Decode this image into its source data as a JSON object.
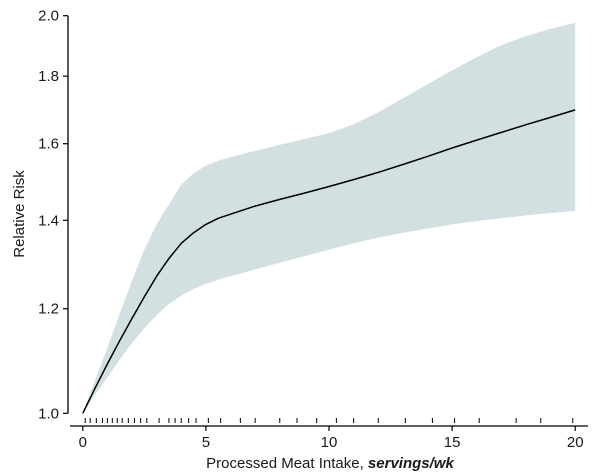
{
  "chart_data": {
    "type": "line",
    "title": "",
    "xlabel": "Processed Meat Intake, ",
    "xlabel_unit": "servings/wk",
    "ylabel": "Relative Risk",
    "y_scale": "log",
    "xlim": [
      -0.6,
      20.6
    ],
    "ylim": [
      0.985,
      2.02
    ],
    "x_ticks": [
      0,
      5,
      10,
      15,
      20
    ],
    "x_tick_labels": [
      "0",
      "5",
      "10",
      "15",
      "20"
    ],
    "y_ticks": [
      1.0,
      1.2,
      1.4,
      1.6,
      1.8,
      2.0
    ],
    "y_tick_labels": [
      "1.0",
      "1.2",
      "1.4",
      "1.6",
      "1.8",
      "2.0"
    ],
    "grid": false,
    "legend": "none",
    "colors": {
      "band": "#d3e0e2",
      "line": "#000000"
    },
    "series": [
      {
        "kind": "estimate",
        "x": [
          0,
          0.5,
          1,
          1.5,
          2,
          2.5,
          3,
          3.5,
          4,
          4.5,
          5,
          5.5,
          6,
          7,
          8,
          9,
          10,
          11,
          12,
          13,
          14,
          15,
          16,
          17,
          18,
          19,
          20
        ],
        "y": [
          1.0,
          1.045,
          1.09,
          1.135,
          1.18,
          1.225,
          1.27,
          1.31,
          1.345,
          1.37,
          1.39,
          1.405,
          1.415,
          1.435,
          1.452,
          1.468,
          1.485,
          1.503,
          1.522,
          1.543,
          1.565,
          1.588,
          1.61,
          1.632,
          1.654,
          1.675,
          1.697
        ]
      },
      {
        "kind": "ci_upper",
        "x": [
          0,
          0.5,
          1,
          1.5,
          2,
          2.5,
          3,
          3.5,
          4,
          4.5,
          5,
          5.5,
          6,
          7,
          8,
          9,
          10,
          11,
          12,
          13,
          14,
          15,
          16,
          17,
          18,
          19,
          20
        ],
        "y": [
          1.0,
          1.06,
          1.12,
          1.19,
          1.26,
          1.33,
          1.39,
          1.44,
          1.49,
          1.52,
          1.54,
          1.553,
          1.563,
          1.58,
          1.597,
          1.613,
          1.63,
          1.655,
          1.69,
          1.732,
          1.775,
          1.818,
          1.86,
          1.9,
          1.93,
          1.955,
          1.975
        ]
      },
      {
        "kind": "ci_lower",
        "x": [
          0,
          0.5,
          1,
          1.5,
          2,
          2.5,
          3,
          3.5,
          4,
          4.5,
          5,
          5.5,
          6,
          7,
          8,
          9,
          10,
          11,
          12,
          13,
          14,
          15,
          16,
          17,
          18,
          19,
          20
        ],
        "y": [
          1.0,
          1.033,
          1.065,
          1.098,
          1.13,
          1.16,
          1.187,
          1.21,
          1.228,
          1.242,
          1.253,
          1.262,
          1.27,
          1.285,
          1.3,
          1.315,
          1.33,
          1.345,
          1.358,
          1.37,
          1.38,
          1.39,
          1.398,
          1.405,
          1.412,
          1.418,
          1.423
        ]
      }
    ],
    "rug_x": [
      0.1,
      0.3,
      0.55,
      0.8,
      1.0,
      1.2,
      1.4,
      1.6,
      1.85,
      2.1,
      2.35,
      2.6,
      3.1,
      3.5,
      3.75,
      4.0,
      4.3,
      4.6,
      5.1,
      5.6,
      6.4,
      7.0,
      8.0,
      8.7,
      9.5,
      10.3,
      11.0,
      12.0,
      13.1,
      14.2,
      15.1,
      16.1,
      17.6,
      18.6,
      19.9
    ]
  }
}
